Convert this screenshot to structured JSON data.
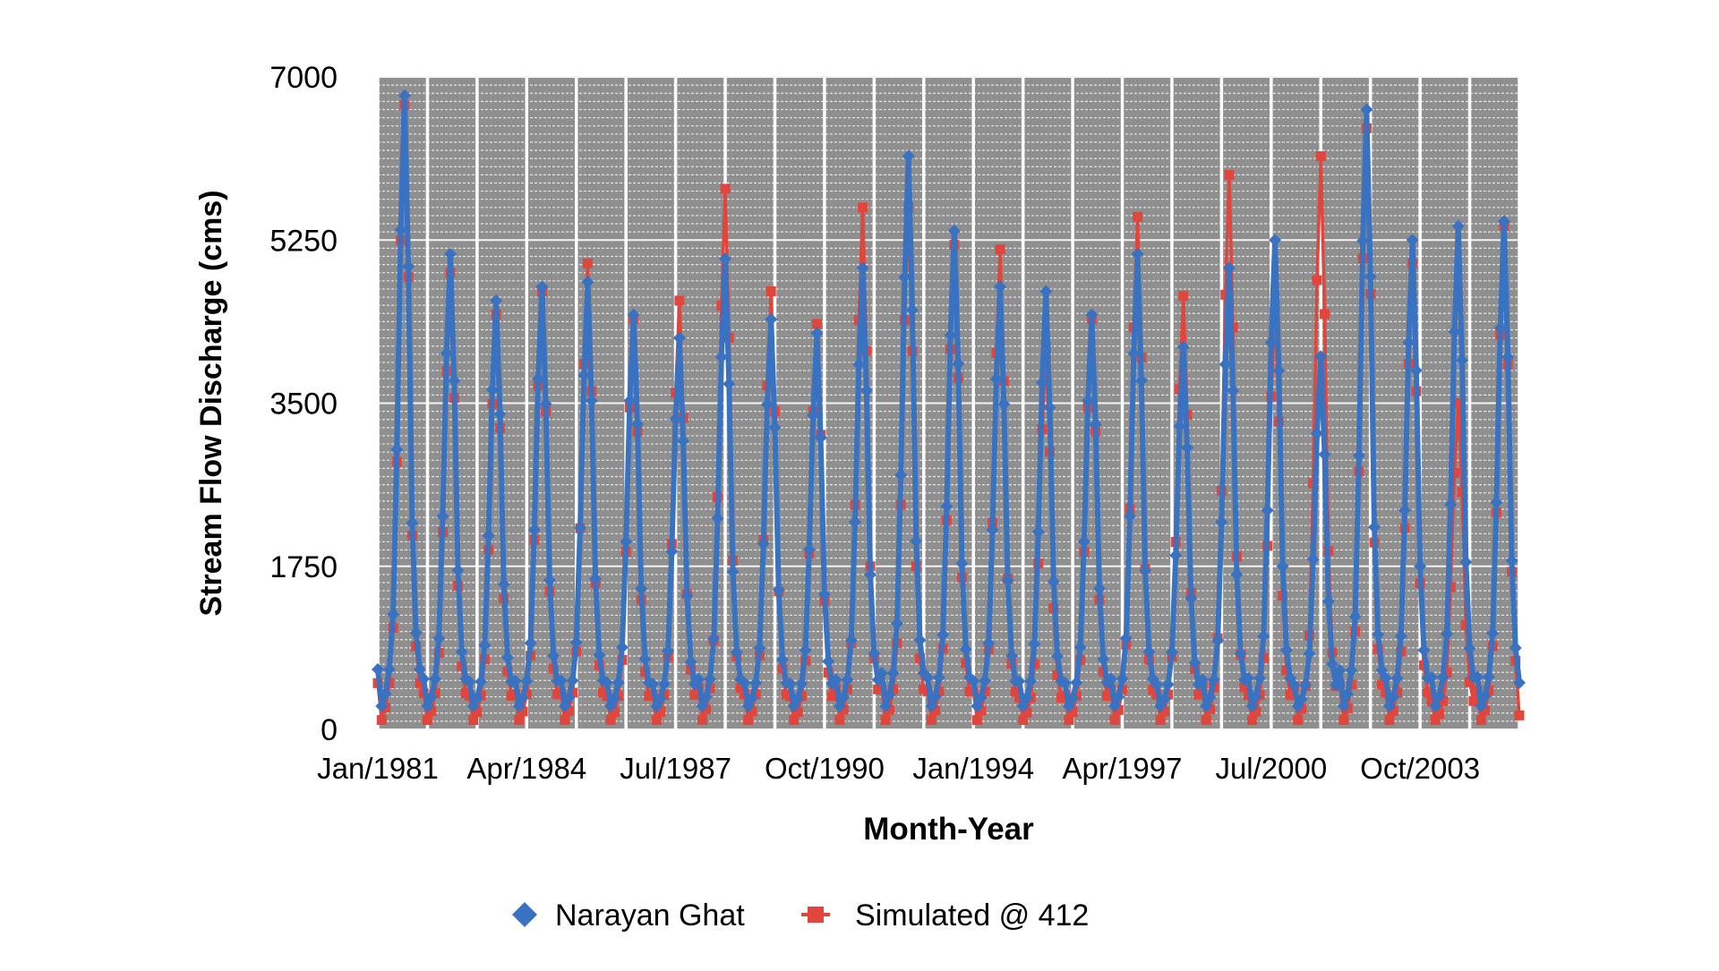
{
  "chart_data": {
    "type": "line",
    "xlabel": "Month-Year",
    "ylabel": "Stream Flow Discharge (cms)",
    "ylim": [
      0,
      7000
    ],
    "yticks": [
      "0",
      "1750",
      "3500",
      "5250",
      "7000"
    ],
    "xticks": [
      "Jan/1981",
      "Apr/1984",
      "Jul/1987",
      "Oct/1990",
      "Jan/1994",
      "Apr/1997",
      "Jul/2000",
      "Oct/2003"
    ],
    "xrange": [
      "Jan/1981",
      "Dec/2005"
    ],
    "grid": true,
    "legend_position": "bottom",
    "series": [
      {
        "name": "Narayan Ghat",
        "color": "#3A72C2",
        "marker": "diamond",
        "annual_peaks": [
          {
            "month": "Aug/1981",
            "value": 6800
          },
          {
            "month": "Aug/1982",
            "value": 5100
          },
          {
            "month": "Aug/1983",
            "value": 4600
          },
          {
            "month": "Aug/1984",
            "value": 4750
          },
          {
            "month": "Aug/1985",
            "value": 4800
          },
          {
            "month": "Aug/1986",
            "value": 4450
          },
          {
            "month": "Aug/1987",
            "value": 4200
          },
          {
            "month": "Aug/1988",
            "value": 5050
          },
          {
            "month": "Aug/1989",
            "value": 4400
          },
          {
            "month": "Aug/1990",
            "value": 4250
          },
          {
            "month": "Aug/1991",
            "value": 4950
          },
          {
            "month": "Aug/1992",
            "value": 6150
          },
          {
            "month": "Aug/1993",
            "value": 5350
          },
          {
            "month": "Aug/1994",
            "value": 4750
          },
          {
            "month": "Aug/1995",
            "value": 4700
          },
          {
            "month": "Aug/1996",
            "value": 4450
          },
          {
            "month": "Aug/1997",
            "value": 5100
          },
          {
            "month": "Aug/1998",
            "value": 4100
          },
          {
            "month": "Aug/1999",
            "value": 4950
          },
          {
            "month": "Aug/2000",
            "value": 5250
          },
          {
            "month": "Aug/2001",
            "value": 4000
          },
          {
            "month": "Aug/2002",
            "value": 6650
          },
          {
            "month": "Aug/2003",
            "value": 5250
          },
          {
            "month": "Aug/2004",
            "value": 5400
          },
          {
            "month": "Aug/2005",
            "value": 5450
          }
        ],
        "dry_season_low": 250,
        "end_value": 500
      },
      {
        "name": "Simulated @ 412",
        "color": "#E0463C",
        "marker": "square",
        "annual_peaks": [
          {
            "month": "Aug/1981",
            "value": 6700
          },
          {
            "month": "Aug/1982",
            "value": 4900
          },
          {
            "month": "Aug/1983",
            "value": 4450
          },
          {
            "month": "Aug/1984",
            "value": 4700
          },
          {
            "month": "Aug/1985",
            "value": 5000
          },
          {
            "month": "Aug/1986",
            "value": 4400
          },
          {
            "month": "Aug/1987",
            "value": 4600
          },
          {
            "month": "Aug/1988",
            "value": 5800
          },
          {
            "month": "Aug/1989",
            "value": 4700
          },
          {
            "month": "Aug/1990",
            "value": 4350
          },
          {
            "month": "Aug/1991",
            "value": 5600
          },
          {
            "month": "Aug/1992",
            "value": 5600
          },
          {
            "month": "Aug/1993",
            "value": 5200
          },
          {
            "month": "Aug/1994",
            "value": 5150
          },
          {
            "month": "Aug/1995",
            "value": 4100
          },
          {
            "month": "Aug/1996",
            "value": 4400
          },
          {
            "month": "Aug/1997",
            "value": 5500
          },
          {
            "month": "Aug/1998",
            "value": 4650
          },
          {
            "month": "Aug/1999",
            "value": 5950
          },
          {
            "month": "Aug/2000",
            "value": 4550
          },
          {
            "month": "Aug/2001",
            "value": 6150
          },
          {
            "month": "Aug/2002",
            "value": 6450
          },
          {
            "month": "Aug/2003",
            "value": 5000
          },
          {
            "month": "Aug/2004",
            "value": 3500
          },
          {
            "month": "Aug/2005",
            "value": 5400
          }
        ],
        "dry_season_low": 100,
        "end_value": 150
      }
    ]
  }
}
